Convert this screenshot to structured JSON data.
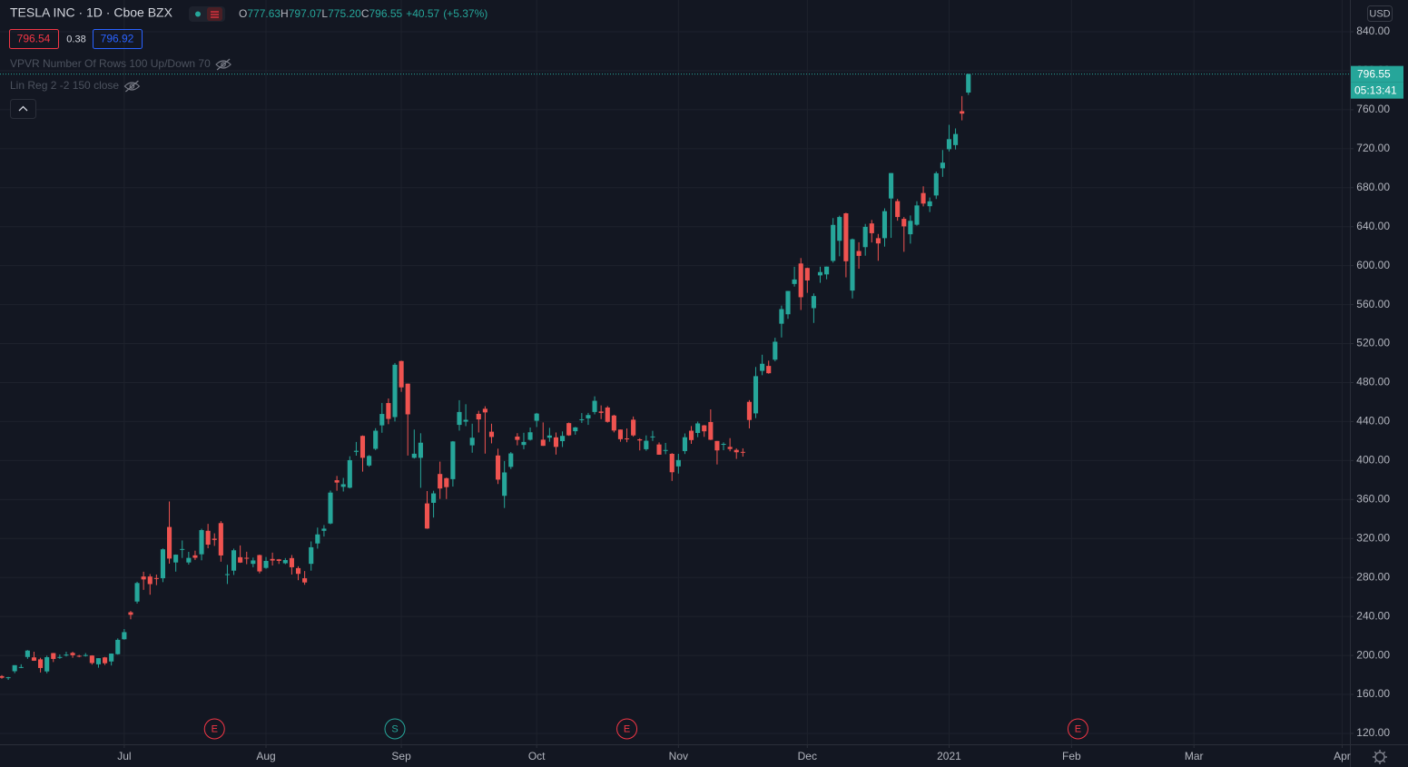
{
  "header": {
    "title": "TESLA INC · 1D · Cboe BZX",
    "ohlc": [
      {
        "label": "O",
        "value": "777.63"
      },
      {
        "label": "H",
        "value": "797.07"
      },
      {
        "label": "L",
        "value": "775.20"
      },
      {
        "label": "C",
        "value": "796.55"
      }
    ],
    "change": "+40.57",
    "change_pct": "(+5.37%)",
    "bid": 796.54,
    "spread": 0.38,
    "ask": 796.92,
    "indicators": [
      "VPVR Number Of Rows 100 Up/Down 70",
      "Lin Reg 2 -2 150 close"
    ],
    "currency": "USD",
    "countdown": "05:13:41"
  },
  "chart_data": {
    "type": "candlestick",
    "up_color": "#26a69a",
    "down_color": "#ef5350",
    "grid": true,
    "categories": [
      null,
      null,
      null,
      null,
      null,
      null,
      null,
      null,
      null,
      null,
      null,
      null,
      null,
      null,
      null,
      null,
      null,
      null,
      null,
      null,
      null,
      null,
      null,
      null,
      null,
      null,
      null,
      null,
      null,
      null,
      null,
      null,
      null,
      null,
      null,
      null,
      null,
      null,
      null,
      null,
      null,
      null,
      null,
      null,
      null,
      null,
      null,
      null,
      null,
      null,
      null,
      null,
      null,
      null,
      null,
      null,
      null,
      null,
      null,
      null,
      null,
      null,
      null,
      null,
      null,
      null,
      null,
      null,
      null,
      null,
      null,
      null,
      null,
      null,
      null,
      null,
      null,
      null,
      null,
      null,
      null,
      null,
      null,
      null,
      null,
      null,
      null,
      null,
      null,
      null,
      null,
      null,
      null,
      null,
      null,
      null,
      null,
      null,
      null,
      null,
      null,
      null,
      null,
      null,
      null,
      null,
      null,
      null,
      null,
      null,
      null,
      null,
      null,
      null,
      null,
      null,
      null,
      null,
      null,
      null,
      null,
      null,
      null,
      null,
      null,
      null,
      null,
      null,
      null,
      null,
      null,
      null,
      null,
      null,
      null,
      null,
      null,
      null,
      null,
      null,
      null,
      null,
      null,
      null,
      null,
      null,
      null,
      null,
      null,
      null,
      null
    ],
    "open": [
      178.8,
      177.6,
      183.8,
      188.0,
      198.4,
      198.0,
      196.0,
      183.6,
      202.4,
      197.5,
      200.6,
      202.6,
      199.7,
      199.9,
      199.9,
      190.9,
      198.0,
      193.8,
      201.3,
      216.6,
      244.3,
      255.3,
      281.0,
      281.0,
      279.4,
      279.2,
      331.8,
      295.4,
      308.6,
      295.4,
      302.7,
      303.8,
      327.9,
      319.8,
      335.8,
      283.2,
      287.0,
      300.8,
      300.2,
      294.0,
      303.0,
      289.8,
      299.0,
      298.6,
      294.6,
      299.9,
      289.6,
      279.2,
      294.0,
      314.9,
      327.9,
      335.4,
      379.8,
      373.0,
      372.1,
      408.9,
      425.3,
      394.9,
      412.0,
      436.1,
      459.0,
      444.6,
      502.1,
      478.9,
      402.8,
      402.8,
      356.0,
      356.6,
      386.2,
      381.9,
      380.9,
      436.6,
      439.9,
      415.6,
      447.9,
      453.1,
      429.6,
      405.2,
      363.8,
      393.5,
      424.6,
      416.0,
      421.3,
      440.8,
      421.4,
      423.4,
      423.8,
      419.9,
      438.4,
      430.1,
      442.0,
      443.3,
      449.8,
      450.3,
      454.4,
      446.2,
      431.8,
      422.7,
      441.9,
      421.8,
      411.6,
      423.8,
      416.5,
      409.9,
      406.9,
      394.0,
      409.7,
      430.6,
      428.3,
      436.1,
      439.5,
      420.1,
      416.5,
      414.0,
      410.9,
      408.9,
      460.2,
      448.4,
      492.0,
      497.1,
      503.5,
      540.4,
      550.1,
      581.2,
      602.2,
      597.6,
      556.4,
      590.0,
      591.0,
      604.9,
      625.5,
      653.7,
      574.4,
      615.0,
      619.0,
      643.3,
      628.2,
      628.2,
      668.9,
      666.2,
      648.0,
      632.2,
      642.0,
      674.5,
      661.0,
      672.0,
      699.9,
      719.5,
      723.7,
      758.5,
      777.63
    ],
    "high": [
      179.8,
      178.0,
      190.0,
      190.9,
      205.5,
      203.8,
      197.6,
      199.8,
      202.6,
      201.0,
      203.8,
      203.8,
      200.6,
      202.4,
      200.2,
      197.2,
      198.5,
      202.0,
      217.5,
      227.1,
      245.6,
      275.6,
      285.9,
      283.5,
      283.0,
      309.8,
      358.0,
      303.6,
      318.0,
      306.3,
      307.5,
      330.0,
      335.0,
      325.3,
      337.8,
      293.0,
      309.6,
      312.9,
      306.4,
      300.4,
      303.4,
      301.0,
      305.5,
      299.0,
      299.9,
      303.0,
      291.5,
      286.6,
      317.0,
      331.2,
      333.8,
      369.2,
      384.2,
      382.2,
      404.4,
      419.1,
      425.8,
      405.6,
      433.2,
      459.1,
      463.7,
      500.1,
      502.5,
      479.0,
      431.8,
      428.0,
      368.7,
      369.0,
      398.9,
      382.5,
      420.0,
      461.9,
      457.8,
      437.8,
      451.0,
      455.7,
      437.8,
      412.2,
      399.5,
      408.7,
      428.1,
      428.5,
      433.9,
      448.9,
      439.1,
      433.6,
      428.8,
      429.9,
      439.0,
      434.5,
      448.7,
      448.9,
      465.9,
      456.6,
      455.9,
      447.0,
      431.8,
      432.9,
      445.2,
      422.9,
      425.8,
      430.5,
      418.6,
      418.1,
      407.6,
      406.9,
      427.8,
      435.4,
      440.0,
      436.5,
      452.5,
      420.1,
      418.7,
      423.0,
      412.5,
      412.5,
      462.0,
      496.0,
      508.6,
      502.5,
      526.0,
      559.0,
      574.0,
      598.8,
      607.8,
      597.9,
      571.5,
      598.9,
      599.0,
      648.8,
      651.3,
      654.3,
      627.8,
      624.0,
      642.8,
      646.9,
      632.5,
      658.8,
      695.0,
      668.5,
      649.9,
      651.5,
      666.1,
      681.4,
      669.9,
      696.6,
      718.7,
      744.5,
      740.8,
      774.0,
      797.07
    ],
    "low": [
      176.1,
      174.9,
      181.8,
      187.0,
      196.5,
      194.4,
      182.5,
      181.7,
      193.2,
      196.5,
      198.9,
      197.6,
      198.1,
      198.8,
      190.6,
      187.4,
      190.2,
      189.7,
      200.8,
      216.1,
      237.1,
      253.2,
      267.3,
      262.3,
      272.1,
      275.2,
      294.2,
      286.0,
      300.0,
      293.2,
      298.0,
      297.6,
      310.0,
      312.4,
      296.2,
      273.3,
      282.6,
      294.9,
      293.6,
      290.5,
      284.2,
      288.9,
      292.3,
      293.9,
      293.6,
      283.0,
      277.2,
      272.5,
      287.0,
      309.6,
      322.0,
      334.6,
      369.0,
      368.2,
      371.4,
      405.0,
      388.6,
      393.6,
      410.7,
      428.5,
      437.3,
      440.1,
      470.5,
      405.1,
      402.0,
      372.0,
      329.9,
      341.5,
      360.6,
      360.5,
      373.3,
      430.7,
      435.3,
      408.0,
      428.8,
      407.1,
      417.6,
      375.9,
      351.3,
      391.3,
      415.6,
      411.6,
      420.5,
      434.4,
      415.0,
      419.3,
      406.1,
      413.9,
      425.3,
      426.5,
      438.6,
      436.6,
      447.4,
      442.5,
      438.9,
      428.9,
      419.3,
      418.8,
      424.5,
      410.4,
      410.0,
      420.1,
      406.0,
      406.5,
      379.1,
      386.6,
      406.7,
      417.1,
      424.0,
      424.3,
      421.0,
      396.0,
      410.6,
      409.5,
      401.7,
      404.0,
      433.0,
      443.5,
      487.6,
      489.1,
      501.8,
      526.3,
      545.4,
      578.5,
      554.5,
      572.1,
      541.2,
      582.4,
      586.0,
      603.1,
      609.6,
      588.0,
      566.3,
      596.8,
      610.2,
      623.8,
      605.0,
      619.5,
      628.5,
      646.1,
      614.2,
      622.6,
      641.0,
      660.8,
      655.0,
      668.4,
      691.1,
      717.2,
      719.2,
      749.1,
      775.2
    ],
    "close": [
      177.1,
      177.6,
      190.0,
      188.1,
      205.0,
      194.6,
      187.1,
      198.2,
      196.4,
      198.4,
      200.8,
      200.2,
      198.9,
      200.4,
      192.2,
      197.2,
      192.0,
      201.9,
      216.0,
      223.9,
      241.7,
      274.3,
      278.0,
      273.2,
      278.9,
      308.9,
      299.4,
      303.4,
      309.2,
      300.1,
      300.2,
      328.6,
      313.7,
      318.5,
      302.6,
      283.4,
      307.9,
      295.3,
      299.8,
      297.5,
      286.2,
      297.0,
      297.4,
      297.0,
      297.9,
      290.5,
      283.7,
      274.9,
      311.0,
      324.2,
      330.1,
      367.1,
      377.4,
      375.7,
      400.4,
      410.0,
      402.8,
      404.7,
      430.6,
      447.8,
      442.7,
      498.3,
      475.1,
      447.4,
      407.0,
      418.3,
      330.2,
      366.3,
      371.3,
      372.7,
      419.6,
      449.8,
      441.8,
      423.4,
      442.2,
      449.4,
      424.2,
      380.4,
      387.8,
      407.3,
      421.2,
      419.1,
      429.0,
      448.2,
      415.1,
      425.7,
      414.0,
      425.3,
      425.9,
      434.0,
      442.3,
      446.7,
      461.3,
      448.9,
      439.7,
      430.8,
      421.9,
      422.6,
      425.8,
      420.6,
      420.3,
      424.7,
      406.0,
      410.8,
      388.0,
      400.5,
      423.9,
      421.0,
      438.1,
      430.0,
      421.3,
      410.4,
      417.1,
      411.8,
      408.5,
      408.1,
      441.6,
      486.6,
      499.3,
      489.6,
      521.9,
      555.4,
      574.0,
      585.8,
      567.6,
      584.8,
      568.8,
      593.4,
      599.0,
      641.8,
      649.9,
      604.5,
      627.1,
      610.0,
      639.8,
      633.3,
      622.8,
      655.9,
      695.0,
      649.9,
      640.3,
      646.0,
      661.8,
      663.7,
      666.0,
      694.8,
      705.7,
      729.8,
      735.1,
      756.0,
      796.55
    ],
    "xlim": [
      -0.28,
      209.2
    ],
    "xticks": [
      {
        "value": 19,
        "label": "Jul"
      },
      {
        "value": 41,
        "label": "Aug"
      },
      {
        "value": 62,
        "label": "Sep"
      },
      {
        "value": 83,
        "label": "Oct"
      },
      {
        "value": 105,
        "label": "Nov"
      },
      {
        "value": 125,
        "label": "Dec"
      },
      {
        "value": 147,
        "label": "2021"
      },
      {
        "value": 166,
        "label": "Feb"
      },
      {
        "value": 185,
        "label": "Mar"
      },
      {
        "value": 208,
        "label": "Apr"
      }
    ],
    "ylim": [
      108.8,
      872.6
    ],
    "yticks": [
      {
        "value": 120,
        "label": "120.00"
      },
      {
        "value": 160,
        "label": "160.00"
      },
      {
        "value": 200,
        "label": "200.00"
      },
      {
        "value": 240,
        "label": "240.00"
      },
      {
        "value": 280,
        "label": "280.00"
      },
      {
        "value": 320,
        "label": "320.00"
      },
      {
        "value": 360,
        "label": "360.00"
      },
      {
        "value": 400,
        "label": "400.00"
      },
      {
        "value": 440,
        "label": "440.00"
      },
      {
        "value": 480,
        "label": "480.00"
      },
      {
        "value": 520,
        "label": "520.00"
      },
      {
        "value": 560,
        "label": "560.00"
      },
      {
        "value": 600,
        "label": "600.00"
      },
      {
        "value": 640,
        "label": "640.00"
      },
      {
        "value": 680,
        "label": "680.00"
      },
      {
        "value": 720,
        "label": "720.00"
      },
      {
        "value": 760,
        "label": "760.00"
      },
      {
        "value": 800,
        "label": "800.00"
      },
      {
        "value": 840,
        "label": "840.00"
      }
    ],
    "events": [
      {
        "label": "E",
        "x": 33,
        "color": "#f23645"
      },
      {
        "label": "S",
        "x": 61,
        "color": "#26a69a"
      },
      {
        "label": "E",
        "x": 97,
        "color": "#f23645"
      },
      {
        "label": "E",
        "x": 167,
        "color": "#f23645"
      }
    ]
  }
}
